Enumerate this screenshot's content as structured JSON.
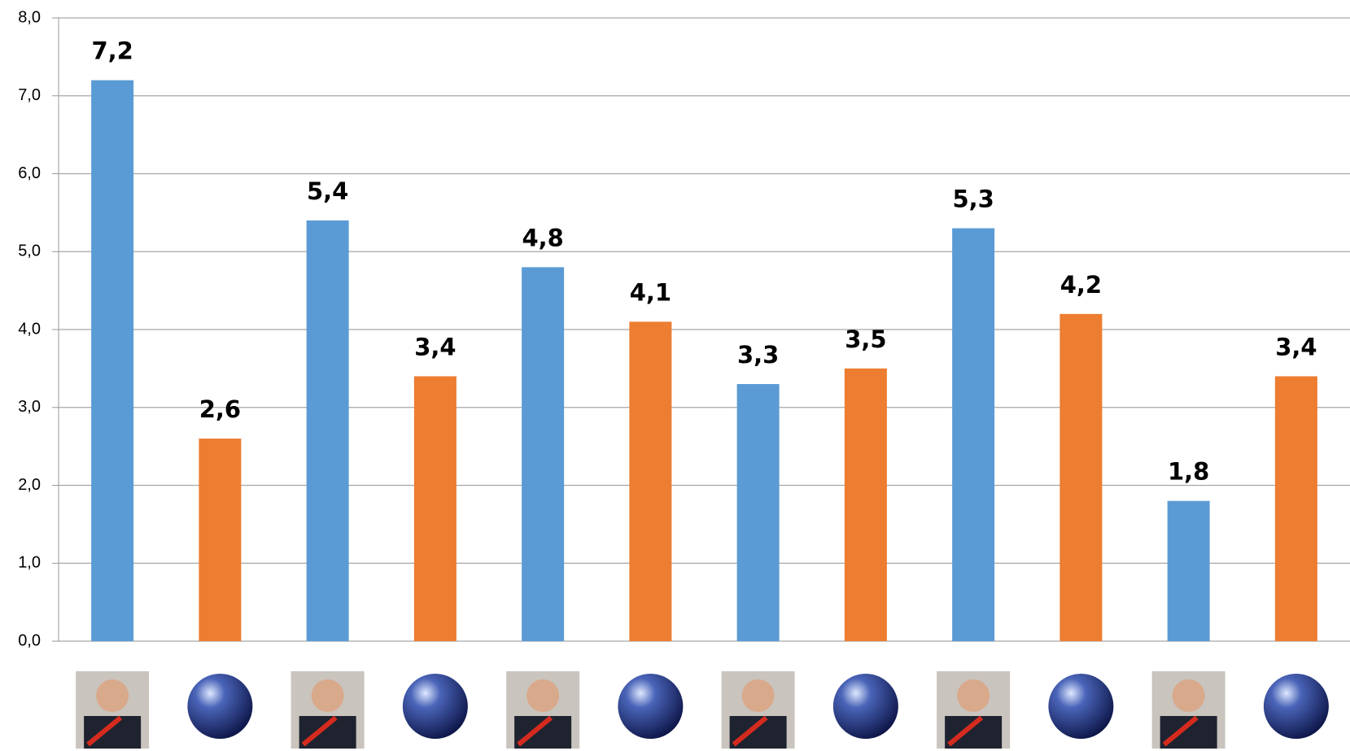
{
  "chart_data": {
    "type": "bar",
    "categories": [
      null,
      null,
      null,
      null,
      null,
      null,
      null,
      null,
      null,
      null,
      null,
      null
    ],
    "values": [
      7.2,
      2.6,
      5.4,
      3.4,
      4.8,
      4.1,
      3.3,
      3.5,
      5.3,
      4.2,
      1.8,
      3.4
    ],
    "value_labels": [
      "7,2",
      "2,6",
      "5,4",
      "3,4",
      "4,8",
      "4,1",
      "3,3",
      "3,5",
      "5,3",
      "4,2",
      "1,8",
      "3,4"
    ],
    "colors": [
      "#5b9bd5",
      "#ed7d31",
      "#5b9bd5",
      "#ed7d31",
      "#5b9bd5",
      "#ed7d31",
      "#5b9bd5",
      "#ed7d31",
      "#5b9bd5",
      "#ed7d31",
      "#5b9bd5",
      "#ed7d31"
    ],
    "ylim": [
      0,
      8
    ],
    "yticks": [
      {
        "value": 0,
        "label": "0,0"
      },
      {
        "value": 1,
        "label": "1,0"
      },
      {
        "value": 2,
        "label": "2,0"
      },
      {
        "value": 3,
        "label": "3,0"
      },
      {
        "value": 4,
        "label": "4,0"
      },
      {
        "value": 5,
        "label": "5,0"
      },
      {
        "value": 6,
        "label": "6,0"
      },
      {
        "value": 7,
        "label": "7,0"
      },
      {
        "value": 8,
        "label": "8,0"
      }
    ],
    "grid": true
  }
}
